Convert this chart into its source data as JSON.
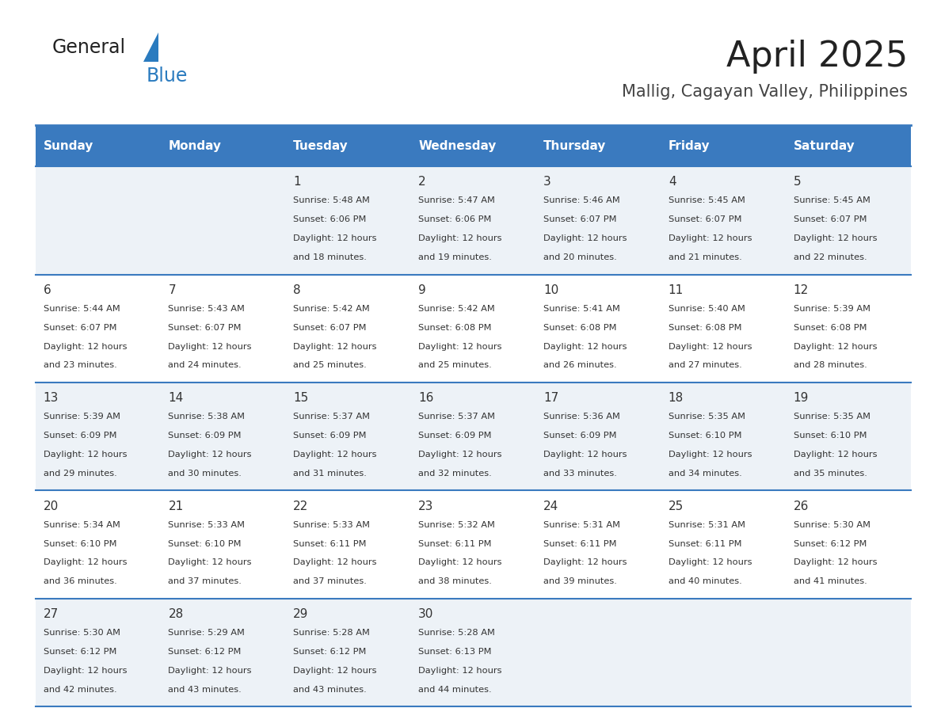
{
  "title": "April 2025",
  "subtitle": "Mallig, Cagayan Valley, Philippines",
  "days_of_week": [
    "Sunday",
    "Monday",
    "Tuesday",
    "Wednesday",
    "Thursday",
    "Friday",
    "Saturday"
  ],
  "header_bg": "#3a7abf",
  "header_text": "#ffffff",
  "row_bg_odd": "#edf2f7",
  "row_bg_even": "#ffffff",
  "divider_color": "#3a7abf",
  "cell_text_color": "#333333",
  "title_color": "#222222",
  "subtitle_color": "#444444",
  "logo_general_color": "#222222",
  "logo_blue_color": "#2a7bbf",
  "logo_triangle_color": "#2a7bbf",
  "calendar": [
    [
      null,
      null,
      {
        "day": 1,
        "sunrise": "5:48 AM",
        "sunset": "6:06 PM",
        "daylight": "12 hours and 18 minutes."
      },
      {
        "day": 2,
        "sunrise": "5:47 AM",
        "sunset": "6:06 PM",
        "daylight": "12 hours and 19 minutes."
      },
      {
        "day": 3,
        "sunrise": "5:46 AM",
        "sunset": "6:07 PM",
        "daylight": "12 hours and 20 minutes."
      },
      {
        "day": 4,
        "sunrise": "5:45 AM",
        "sunset": "6:07 PM",
        "daylight": "12 hours and 21 minutes."
      },
      {
        "day": 5,
        "sunrise": "5:45 AM",
        "sunset": "6:07 PM",
        "daylight": "12 hours and 22 minutes."
      }
    ],
    [
      {
        "day": 6,
        "sunrise": "5:44 AM",
        "sunset": "6:07 PM",
        "daylight": "12 hours and 23 minutes."
      },
      {
        "day": 7,
        "sunrise": "5:43 AM",
        "sunset": "6:07 PM",
        "daylight": "12 hours and 24 minutes."
      },
      {
        "day": 8,
        "sunrise": "5:42 AM",
        "sunset": "6:07 PM",
        "daylight": "12 hours and 25 minutes."
      },
      {
        "day": 9,
        "sunrise": "5:42 AM",
        "sunset": "6:08 PM",
        "daylight": "12 hours and 25 minutes."
      },
      {
        "day": 10,
        "sunrise": "5:41 AM",
        "sunset": "6:08 PM",
        "daylight": "12 hours and 26 minutes."
      },
      {
        "day": 11,
        "sunrise": "5:40 AM",
        "sunset": "6:08 PM",
        "daylight": "12 hours and 27 minutes."
      },
      {
        "day": 12,
        "sunrise": "5:39 AM",
        "sunset": "6:08 PM",
        "daylight": "12 hours and 28 minutes."
      }
    ],
    [
      {
        "day": 13,
        "sunrise": "5:39 AM",
        "sunset": "6:09 PM",
        "daylight": "12 hours and 29 minutes."
      },
      {
        "day": 14,
        "sunrise": "5:38 AM",
        "sunset": "6:09 PM",
        "daylight": "12 hours and 30 minutes."
      },
      {
        "day": 15,
        "sunrise": "5:37 AM",
        "sunset": "6:09 PM",
        "daylight": "12 hours and 31 minutes."
      },
      {
        "day": 16,
        "sunrise": "5:37 AM",
        "sunset": "6:09 PM",
        "daylight": "12 hours and 32 minutes."
      },
      {
        "day": 17,
        "sunrise": "5:36 AM",
        "sunset": "6:09 PM",
        "daylight": "12 hours and 33 minutes."
      },
      {
        "day": 18,
        "sunrise": "5:35 AM",
        "sunset": "6:10 PM",
        "daylight": "12 hours and 34 minutes."
      },
      {
        "day": 19,
        "sunrise": "5:35 AM",
        "sunset": "6:10 PM",
        "daylight": "12 hours and 35 minutes."
      }
    ],
    [
      {
        "day": 20,
        "sunrise": "5:34 AM",
        "sunset": "6:10 PM",
        "daylight": "12 hours and 36 minutes."
      },
      {
        "day": 21,
        "sunrise": "5:33 AM",
        "sunset": "6:10 PM",
        "daylight": "12 hours and 37 minutes."
      },
      {
        "day": 22,
        "sunrise": "5:33 AM",
        "sunset": "6:11 PM",
        "daylight": "12 hours and 37 minutes."
      },
      {
        "day": 23,
        "sunrise": "5:32 AM",
        "sunset": "6:11 PM",
        "daylight": "12 hours and 38 minutes."
      },
      {
        "day": 24,
        "sunrise": "5:31 AM",
        "sunset": "6:11 PM",
        "daylight": "12 hours and 39 minutes."
      },
      {
        "day": 25,
        "sunrise": "5:31 AM",
        "sunset": "6:11 PM",
        "daylight": "12 hours and 40 minutes."
      },
      {
        "day": 26,
        "sunrise": "5:30 AM",
        "sunset": "6:12 PM",
        "daylight": "12 hours and 41 minutes."
      }
    ],
    [
      {
        "day": 27,
        "sunrise": "5:30 AM",
        "sunset": "6:12 PM",
        "daylight": "12 hours and 42 minutes."
      },
      {
        "day": 28,
        "sunrise": "5:29 AM",
        "sunset": "6:12 PM",
        "daylight": "12 hours and 43 minutes."
      },
      {
        "day": 29,
        "sunrise": "5:28 AM",
        "sunset": "6:12 PM",
        "daylight": "12 hours and 43 minutes."
      },
      {
        "day": 30,
        "sunrise": "5:28 AM",
        "sunset": "6:13 PM",
        "daylight": "12 hours and 44 minutes."
      },
      null,
      null,
      null
    ]
  ]
}
